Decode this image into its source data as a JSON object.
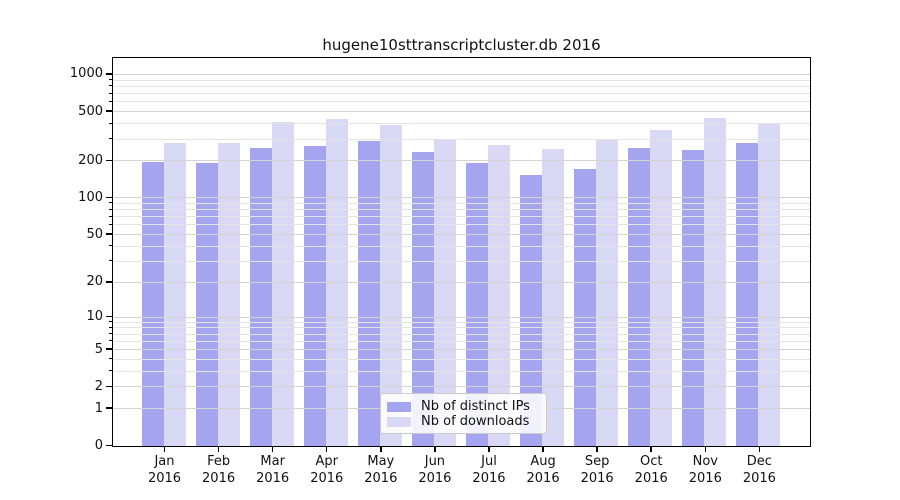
{
  "chart_data": {
    "type": "bar",
    "title": "hugene10sttranscriptcluster.db 2016",
    "categories": [
      "Jan 2016",
      "Feb 2016",
      "Mar 2016",
      "Apr 2016",
      "May 2016",
      "Jun 2016",
      "Jul 2016",
      "Aug 2016",
      "Sep 2016",
      "Oct 2016",
      "Nov 2016",
      "Dec 2016"
    ],
    "series": [
      {
        "name": "Nb of distinct IPs",
        "color": "#a5a5ef",
        "values": [
          193,
          191,
          253,
          262,
          288,
          234,
          190,
          153,
          170,
          253,
          242,
          278
        ]
      },
      {
        "name": "Nb of downloads",
        "color": "#d9d9f6",
        "values": [
          277,
          277,
          411,
          434,
          388,
          293,
          268,
          248,
          296,
          352,
          438,
          403
        ]
      }
    ],
    "yscale": "log10(x+1)",
    "yticks": [
      0,
      1,
      2,
      5,
      10,
      20,
      50,
      100,
      200,
      500,
      1000
    ],
    "minor_yticks": [
      3,
      4,
      6,
      7,
      8,
      9,
      30,
      40,
      60,
      70,
      80,
      90,
      300,
      400,
      600,
      700,
      800,
      900
    ],
    "ylim": [
      0,
      1350
    ],
    "xlabel": "",
    "ylabel": "",
    "grid": true,
    "grid_over_bars": true,
    "legend_position": "lower center"
  },
  "colors": {
    "axis": "#000000",
    "grid_major": "#d4d4d4",
    "grid_minor": "#e4e4e4",
    "legend_border": "#cbcbcb",
    "background": "#ffffff"
  }
}
